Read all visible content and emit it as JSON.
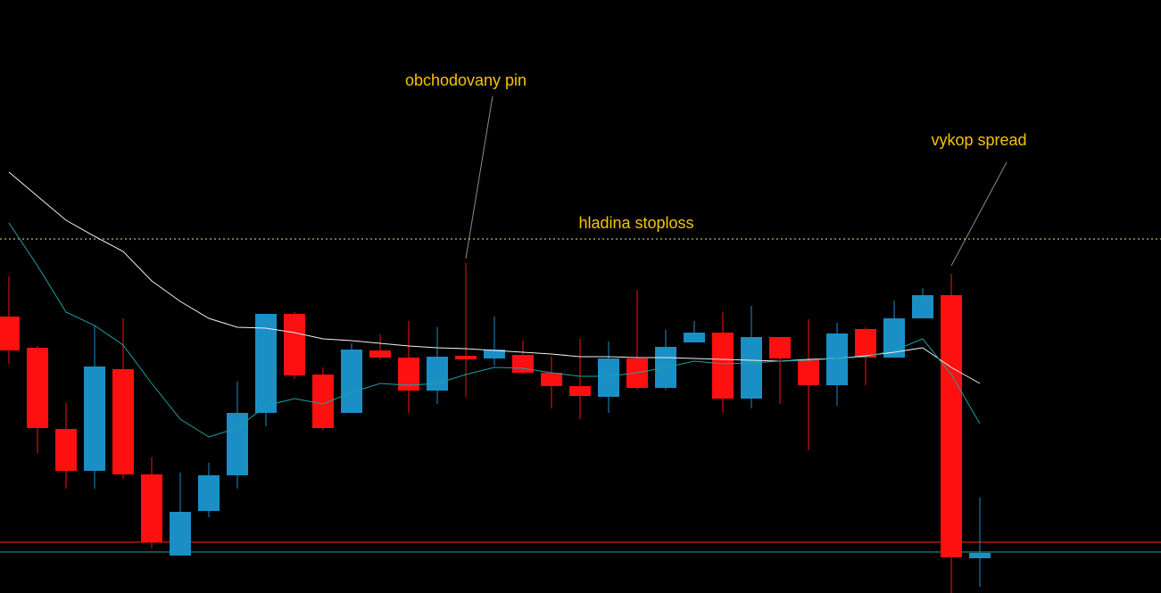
{
  "chart_data": {
    "type": "candlestick",
    "ylim": [
      0,
      665
    ],
    "up_color": "#1a8fc6",
    "down_color": "#ff1010",
    "open": [
      310,
      275,
      184,
      137,
      251,
      133,
      42,
      92,
      132,
      202,
      313,
      245,
      202,
      272,
      264,
      227,
      266,
      263,
      267,
      247,
      232,
      220,
      263,
      230,
      281,
      292,
      218,
      287,
      262,
      233,
      296,
      264,
      308,
      334,
      39
    ],
    "high": [
      355,
      277,
      213,
      300,
      308,
      152,
      135,
      146,
      237,
      313,
      315,
      253,
      280,
      290,
      305,
      298,
      370,
      310,
      283,
      265,
      285,
      282,
      340,
      295,
      305,
      315,
      322,
      287,
      307,
      303,
      298,
      328,
      342,
      358,
      107
    ],
    "low": [
      257,
      157,
      117,
      117,
      128,
      50,
      42,
      85,
      117,
      187,
      240,
      183,
      202,
      262,
      202,
      212,
      220,
      255,
      246,
      207,
      195,
      202,
      228,
      228,
      281,
      202,
      207,
      212,
      160,
      210,
      233,
      264,
      308,
      0,
      7
    ],
    "close": [
      272,
      185,
      137,
      254,
      133,
      57,
      91,
      132,
      202,
      313,
      244,
      185,
      273,
      264,
      227,
      265,
      262,
      273,
      247,
      232,
      221,
      263,
      230,
      276,
      292,
      218,
      287,
      263,
      233,
      291,
      264,
      308,
      334,
      40,
      45
    ],
    "ma": [
      {
        "color": "#f0f0f0",
        "values": [
          472,
          445,
          418,
          400,
          383,
          350,
          327,
          308,
          298,
          297,
          292,
          285,
          283,
          280,
          277,
          275,
          274,
          272,
          270,
          268,
          265,
          265,
          264,
          264,
          263,
          262,
          261,
          260,
          262,
          263,
          266,
          270,
          275,
          253,
          235
        ]
      },
      {
        "color": "#1aa3a3",
        "values": [
          415,
          367,
          315,
          300,
          278,
          235,
          195,
          175,
          185,
          210,
          218,
          212,
          225,
          235,
          233,
          235,
          245,
          253,
          252,
          247,
          243,
          243,
          247,
          253,
          260,
          257,
          258,
          260,
          261,
          263,
          265,
          272,
          285,
          245,
          190
        ]
      }
    ],
    "hlines": [
      {
        "value": 397,
        "color": "#e6e6a0",
        "dashed": true
      },
      {
        "value": 57,
        "color": "#ff2020",
        "dashed": false
      },
      {
        "value": 46,
        "color": "#1aa3a3",
        "dashed": false
      }
    ],
    "annotations": [
      {
        "text": "obchodovany pin"
      },
      {
        "text": "hladina stoploss"
      },
      {
        "text": "vykop spread"
      }
    ]
  }
}
